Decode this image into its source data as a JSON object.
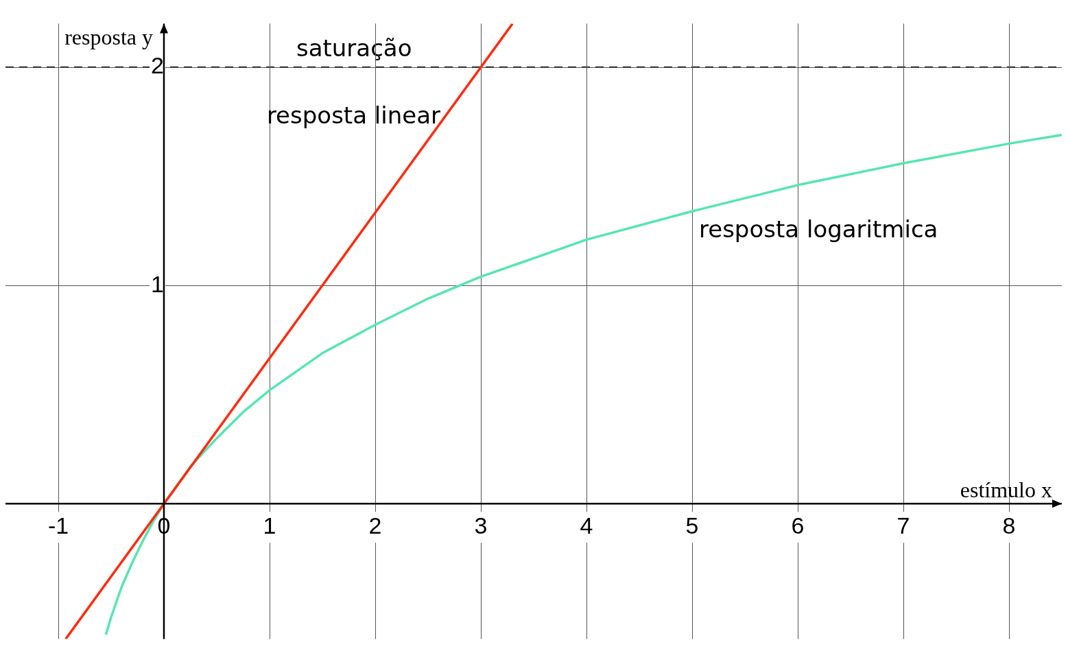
{
  "chart_data": {
    "type": "line",
    "xlabel": "estímulo x",
    "ylabel": "resposta y",
    "xlim": [
      -1.5,
      8.5
    ],
    "ylim": [
      -0.62,
      2.2
    ],
    "xticks": [
      -1,
      0,
      1,
      2,
      3,
      4,
      5,
      6,
      7,
      8
    ],
    "yticks": [
      1,
      2
    ],
    "grid": true,
    "legend": false,
    "marker": "none",
    "series": [
      {
        "name": "resposta linear",
        "color": "#ff2a0e",
        "x": [
          -0.93,
          3.3
        ],
        "values": [
          -0.62,
          2.2
        ]
      },
      {
        "name": "resposta logaritmica",
        "color": "#55e6b0",
        "x": [
          -0.55,
          -0.5,
          -0.4,
          -0.3,
          -0.2,
          -0.1,
          0,
          0.25,
          0.5,
          0.75,
          1,
          1.5,
          2,
          2.5,
          3,
          4,
          5,
          6,
          7,
          8,
          8.5
        ],
        "values": [
          -0.6,
          -0.52,
          -0.38,
          -0.27,
          -0.17,
          -0.08,
          0,
          0.17,
          0.3,
          0.42,
          0.52,
          0.69,
          0.82,
          0.94,
          1.04,
          1.21,
          1.34,
          1.46,
          1.56,
          1.65,
          1.69
        ]
      }
    ],
    "ref_lines": [
      {
        "axis": "y",
        "value": 2,
        "label": "saturação",
        "color": "#000000",
        "line_style": "dashed"
      }
    ]
  }
}
